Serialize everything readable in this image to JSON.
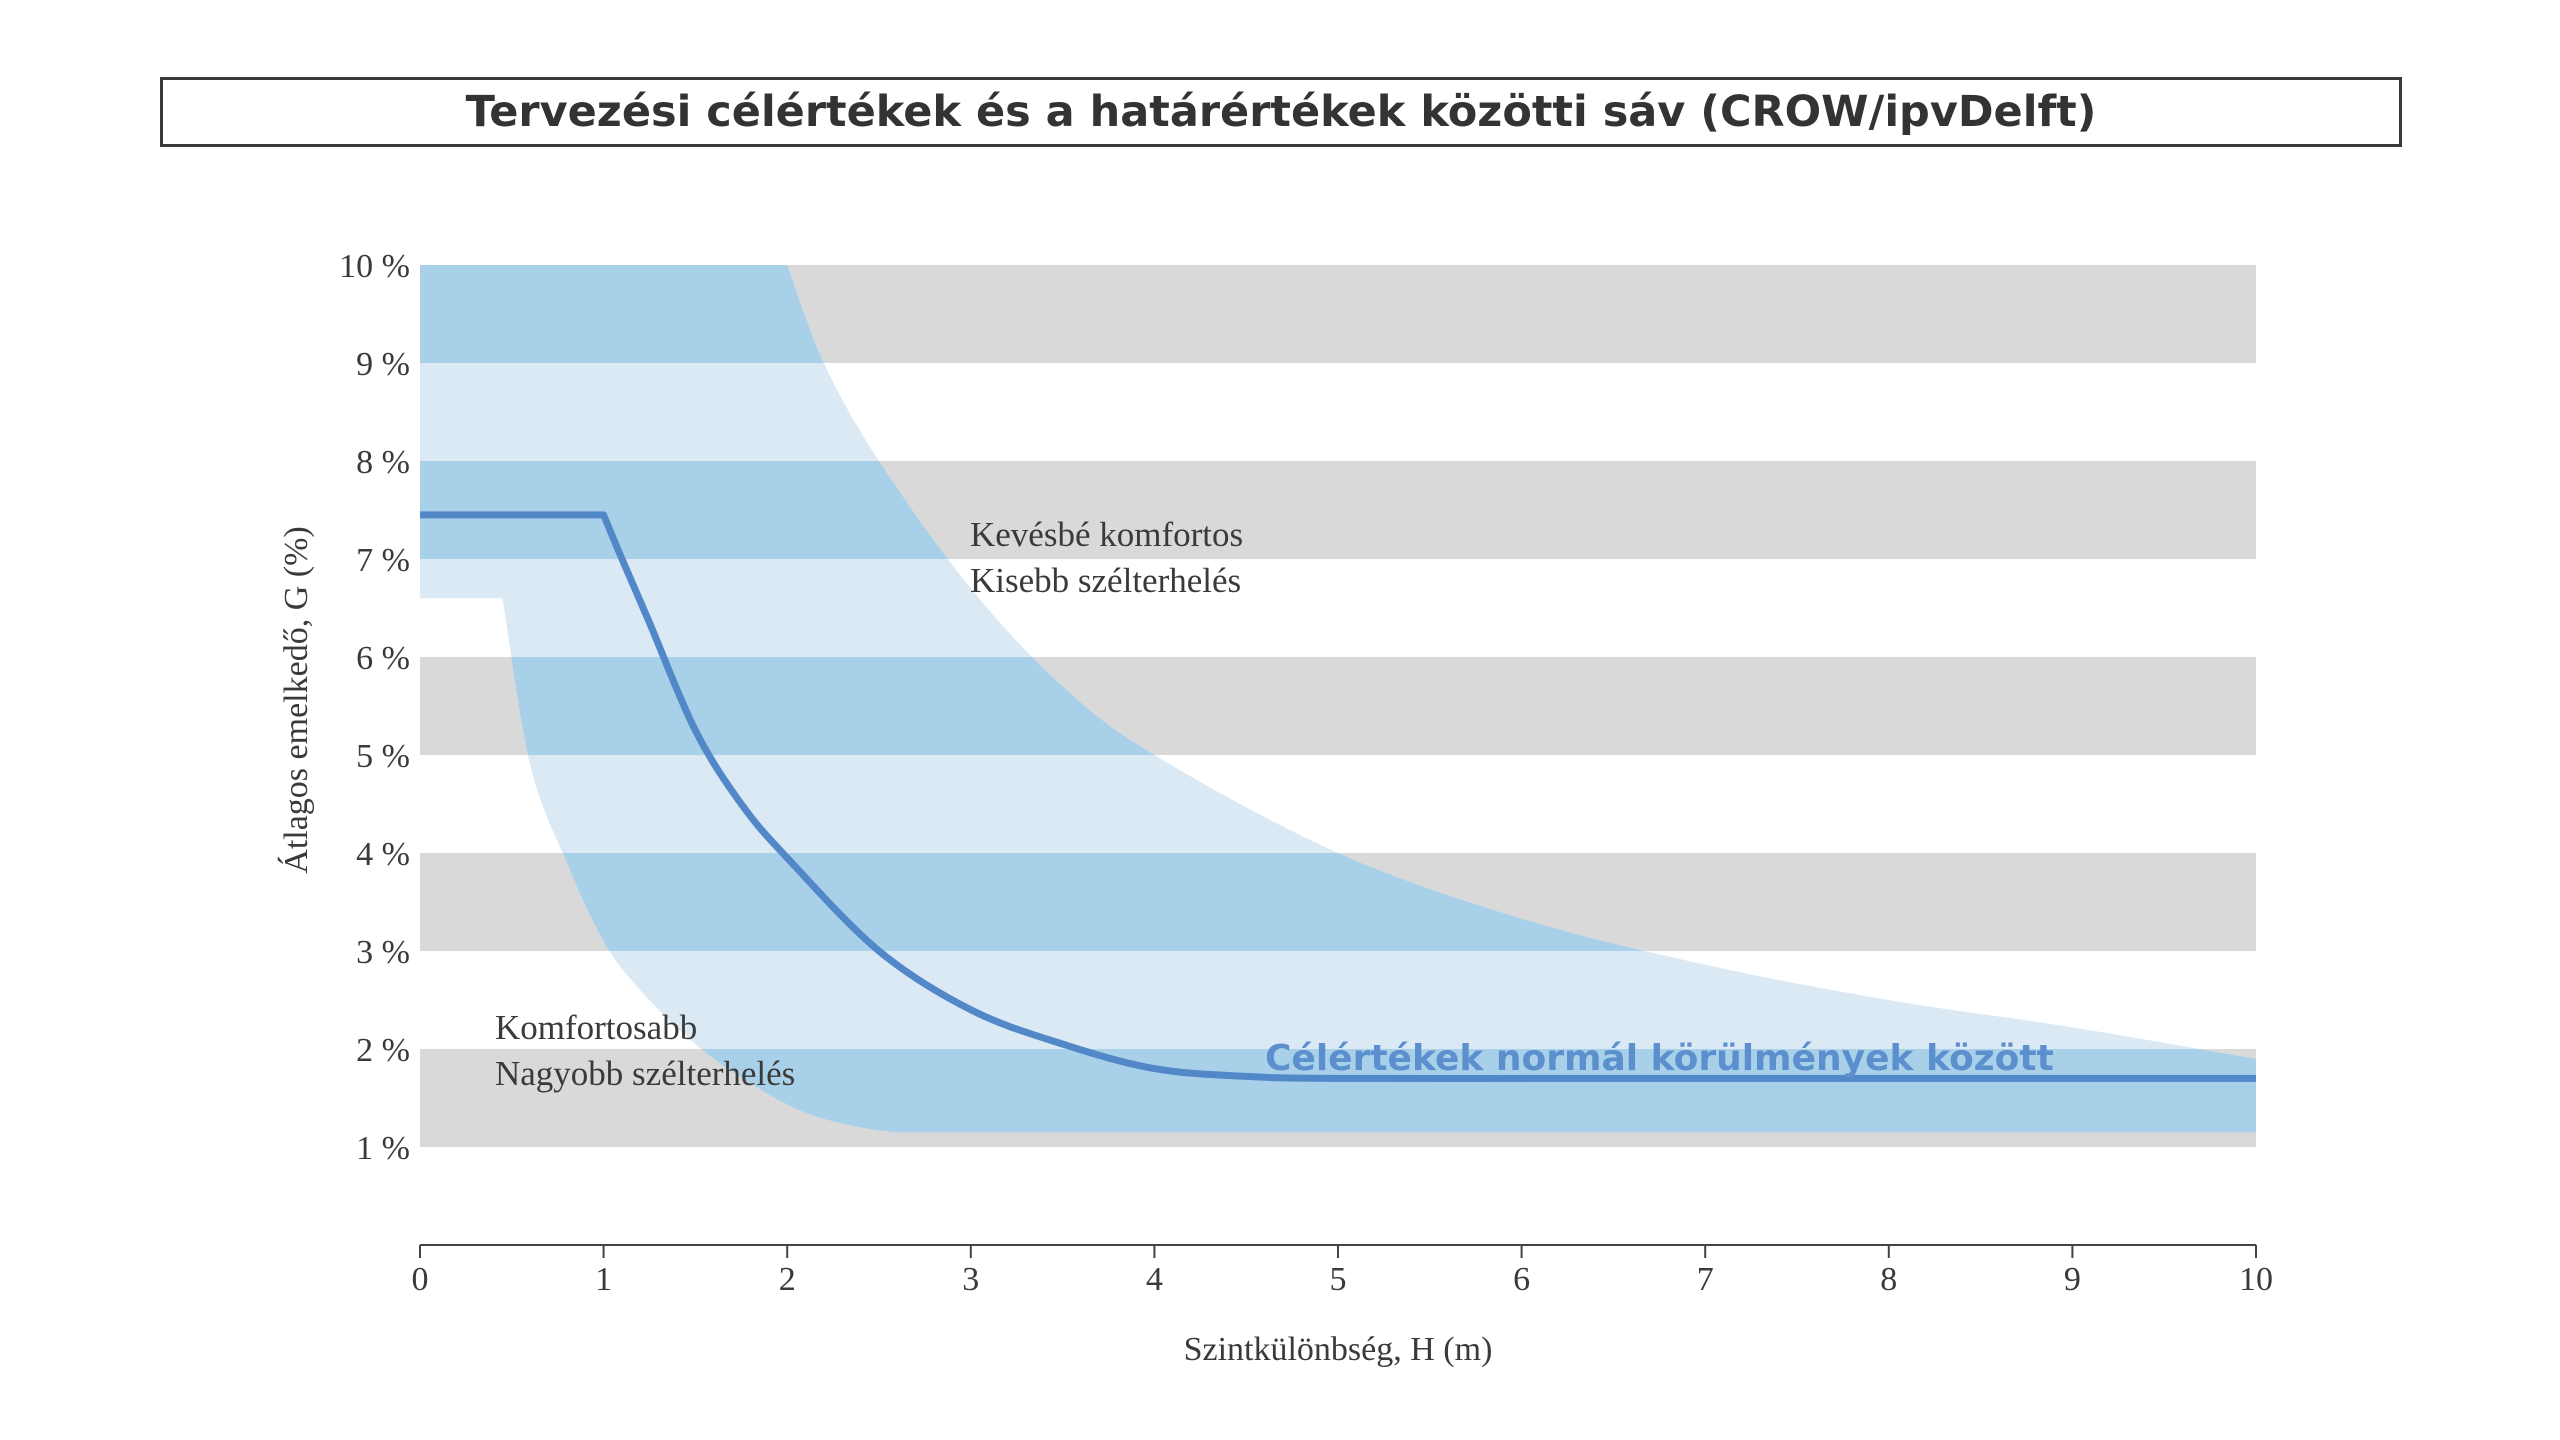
{
  "title": "Tervezési célértékek és a határértékek közötti sáv (CROW/ipvDelft)",
  "chart_data": {
    "type": "line",
    "xlabel": "Szintkülönbség, H (m)",
    "ylabel": "Átlagos emelkedő, G (%)",
    "xlim": [
      0,
      10
    ],
    "ylim": [
      0,
      10
    ],
    "x_ticks": [
      "0",
      "1",
      "2",
      "3",
      "4",
      "5",
      "6",
      "7",
      "8",
      "9",
      "10"
    ],
    "y_ticks": [
      "1 %",
      "2 %",
      "3 %",
      "4 %",
      "5 %",
      "6 %",
      "7 %",
      "8 %",
      "9 %",
      "10 %"
    ],
    "gray_bands": [
      [
        1,
        2
      ],
      [
        3,
        4
      ],
      [
        5,
        6
      ],
      [
        7,
        8
      ],
      [
        9,
        10
      ]
    ],
    "annotations": {
      "upper_line1": "Kevésbé komfortos",
      "upper_line2": "Kisebb szélterhelés",
      "lower_line1": "Komfortosabb",
      "lower_line2": "Nagyobb szélterhelés",
      "series_label": "Célértékek normál körülmények között"
    },
    "band_upper": {
      "x": [
        0,
        1.0,
        2.0,
        2.2,
        2.5,
        3.0,
        3.5,
        4.0,
        5.0,
        6.0,
        7.0,
        8.0,
        9.0,
        10.0
      ],
      "y": [
        10.0,
        10.0,
        10.0,
        9.0,
        8.0,
        6.7,
        5.7,
        5.0,
        4.0,
        3.33,
        2.86,
        2.5,
        2.22,
        1.9
      ]
    },
    "band_lower": {
      "x": [
        0,
        0.45,
        0.6,
        0.8,
        1.0,
        1.2,
        1.5,
        1.8,
        2.1,
        2.4,
        2.6,
        10.0
      ],
      "y": [
        6.6,
        6.6,
        4.9,
        3.9,
        3.1,
        2.6,
        2.05,
        1.65,
        1.35,
        1.2,
        1.15,
        1.15
      ]
    },
    "series": [
      {
        "name": "Célértékek normál körülmények között",
        "x": [
          0,
          1.0,
          1.1,
          1.25,
          1.5,
          1.75,
          2.0,
          2.5,
          3.0,
          3.5,
          4.0,
          4.5,
          5.0,
          6.0,
          7.0,
          8.0,
          9.0,
          10.0
        ],
        "y": [
          7.45,
          7.45,
          7.0,
          6.35,
          5.25,
          4.5,
          3.95,
          3.0,
          2.4,
          2.05,
          1.8,
          1.72,
          1.7,
          1.7,
          1.7,
          1.7,
          1.7,
          1.7
        ]
      }
    ],
    "colors": {
      "gray_band": "#d9d9d9",
      "band_light": "#dbe9f5",
      "band_dark": "#a8d1e9",
      "line": "#5288c8",
      "series_label": "#5b8fcd",
      "axis": "#444444",
      "text": "#3a3a3a"
    }
  }
}
